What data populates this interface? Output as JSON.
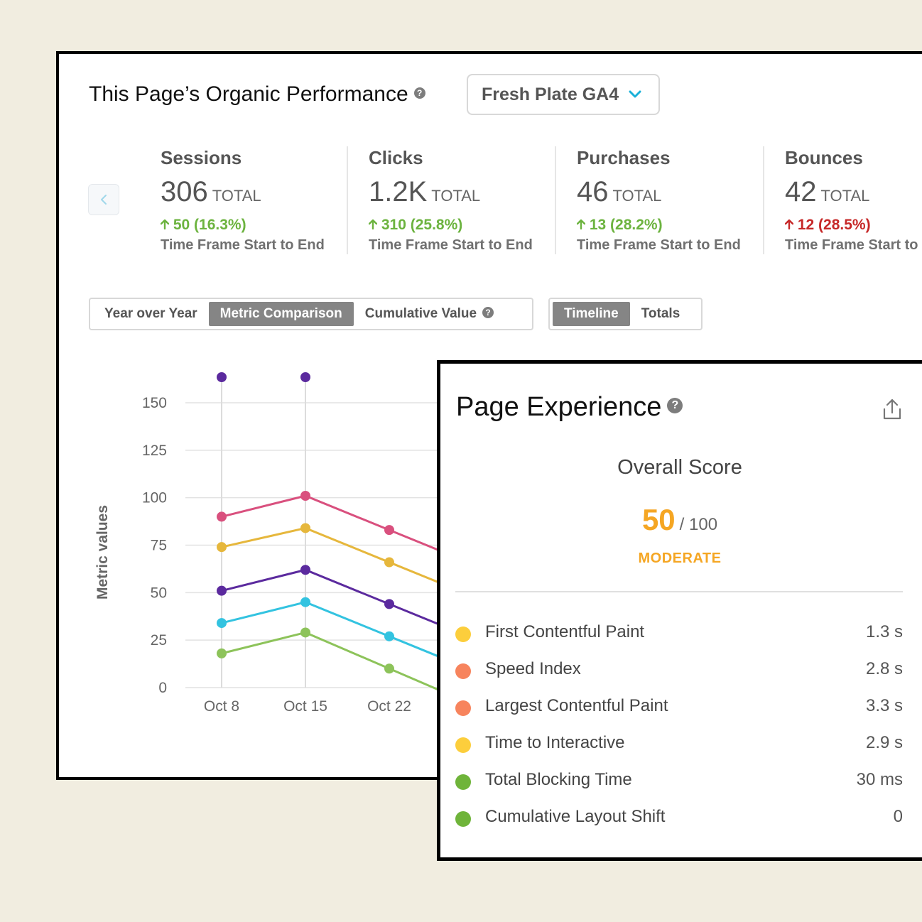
{
  "colors": {
    "background": "#f1ede0",
    "positive": "#6cb33f",
    "negative": "#c62828",
    "moderate": "#f5a623",
    "select_chevron": "#1ab0d8"
  },
  "performance": {
    "title": "This Page’s Organic Performance",
    "property_select": {
      "value": "Fresh Plate GA4",
      "icon": "chevron-down-icon"
    },
    "prev_icon": "chevron-left-icon",
    "metrics": [
      {
        "name": "Sessions",
        "total": "306",
        "unit": "TOTAL",
        "change": "50 (16.3%)",
        "direction": "up",
        "status": "positive",
        "subtitle": "Time Frame Start to End"
      },
      {
        "name": "Clicks",
        "total": "1.2K",
        "unit": "TOTAL",
        "change": "310 (25.8%)",
        "direction": "up",
        "status": "positive",
        "subtitle": "Time Frame Start to End"
      },
      {
        "name": "Purchases",
        "total": "46",
        "unit": "TOTAL",
        "change": "13 (28.2%)",
        "direction": "up",
        "status": "positive",
        "subtitle": "Time Frame Start to End"
      },
      {
        "name": "Bounces",
        "total": "42",
        "unit": "TOTAL",
        "change": "12 (28.5%)",
        "direction": "up",
        "status": "negative",
        "subtitle": "Time Frame Start to"
      }
    ],
    "comparison_tabs": [
      {
        "label": "Year over Year",
        "active": false
      },
      {
        "label": "Metric Comparison",
        "active": true
      },
      {
        "label": "Cumulative Value",
        "active": false,
        "help": true
      }
    ],
    "view_tabs": [
      {
        "label": "Timeline",
        "active": true
      },
      {
        "label": "Totals",
        "active": false
      }
    ]
  },
  "chart_data": {
    "type": "line",
    "title": "",
    "xlabel": "",
    "ylabel": "Metric values",
    "ylim": [
      0,
      150
    ],
    "yticks": [
      "0",
      "25",
      "50",
      "75",
      "100",
      "125",
      "150"
    ],
    "categories": [
      "Oct 8",
      "Oct 15",
      "Oct 22"
    ],
    "annotation_markers": [
      {
        "category": "Oct 8",
        "color": "#5b2a9e"
      },
      {
        "category": "Oct 15",
        "color": "#5b2a9e"
      }
    ],
    "series": [
      {
        "name": "pink",
        "color": "#d9507e",
        "values": [
          90,
          101,
          83
        ]
      },
      {
        "name": "yellow",
        "color": "#e6b73c",
        "values": [
          74,
          84,
          66
        ]
      },
      {
        "name": "purple",
        "color": "#5b2a9e",
        "values": [
          51,
          62,
          44
        ]
      },
      {
        "name": "cyan",
        "color": "#33c3e0",
        "values": [
          34,
          45,
          27
        ]
      },
      {
        "name": "green",
        "color": "#8dc35a",
        "values": [
          18,
          29,
          10
        ]
      }
    ]
  },
  "experience": {
    "title": "Page Experience",
    "share_icon": "share-icon",
    "overall_label": "Overall Score",
    "score": "50",
    "score_max": "/ 100",
    "rating": "MODERATE",
    "metrics": [
      {
        "label": "First Contentful Paint",
        "value": "1.3 s",
        "color": "#fcce3c"
      },
      {
        "label": "Speed Index",
        "value": "2.8 s",
        "color": "#f7845d"
      },
      {
        "label": "Largest Contentful Paint",
        "value": "3.3 s",
        "color": "#f7845d"
      },
      {
        "label": "Time to Interactive",
        "value": "2.9 s",
        "color": "#fcce3c"
      },
      {
        "label": "Total Blocking Time",
        "value": "30 ms",
        "color": "#6fb43a"
      },
      {
        "label": "Cumulative Layout Shift",
        "value": "0",
        "color": "#6fb43a"
      }
    ]
  }
}
